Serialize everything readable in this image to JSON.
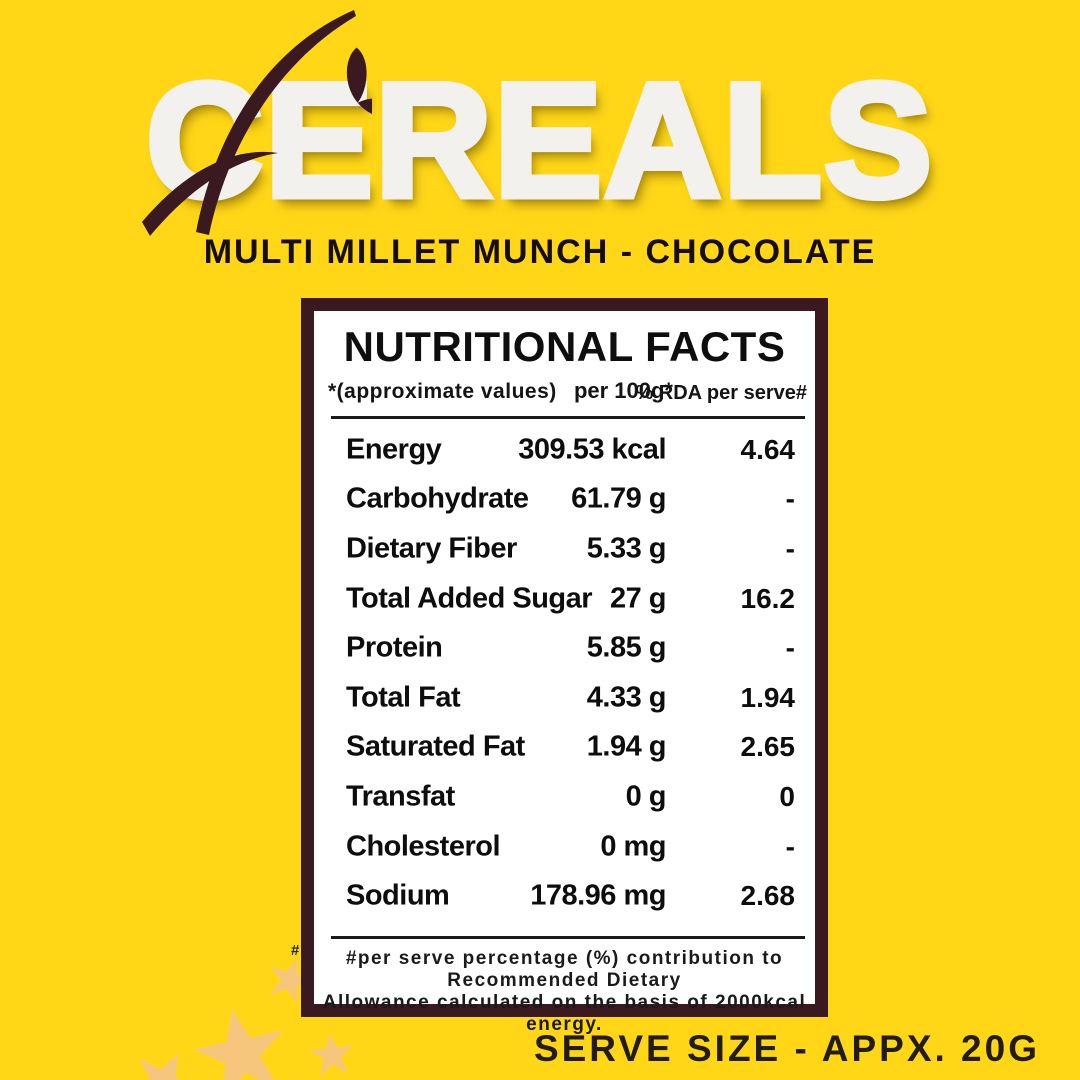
{
  "header": {
    "brand": "CEREALS",
    "subtitle": "MULTI MILLET MUNCH - CHOCOLATE"
  },
  "nutrition_table": {
    "title": "NUTRITIONAL FACTS",
    "columns": {
      "note": "*(approximate values)",
      "per100": "per 100g*",
      "rda": "% RDA per serve#"
    },
    "rows": [
      {
        "label": "Energy",
        "value": "309.53 kcal",
        "rda": "4.64"
      },
      {
        "label": "Carbohydrate",
        "value": "61.79 g",
        "rda": "-"
      },
      {
        "label": "Dietary Fiber",
        "value": "5.33 g",
        "rda": "-"
      },
      {
        "label": "Total Added Sugar",
        "value": "27 g",
        "rda": "16.2"
      },
      {
        "label": "Protein",
        "value": "5.85 g",
        "rda": "-"
      },
      {
        "label": "Total Fat",
        "value": "4.33 g",
        "rda": "1.94"
      },
      {
        "label": "Saturated Fat",
        "value": "1.94 g",
        "rda": "2.65"
      },
      {
        "label": "Transfat",
        "value": "0 g",
        "rda": "0"
      },
      {
        "label": "Cholesterol",
        "value": "0 mg",
        "rda": "-"
      },
      {
        "label": "Sodium",
        "value": "178.96 mg",
        "rda": "2.68"
      }
    ],
    "footnote_line1": "#per serve percentage (%) contribution to Recommended Dietary",
    "footnote_line2": "Allowance calculated on the basis of 2000kcal energy.",
    "stray_hash": "#"
  },
  "footer": {
    "serve_size": "SERVE SIZE - APPX. 20G"
  },
  "colors": {
    "background": "#FFD717",
    "maroon": "#3A1A20",
    "title_white": "#F2F1EE",
    "text_dark": "#0E0E0E",
    "star": "#F6C67D"
  }
}
